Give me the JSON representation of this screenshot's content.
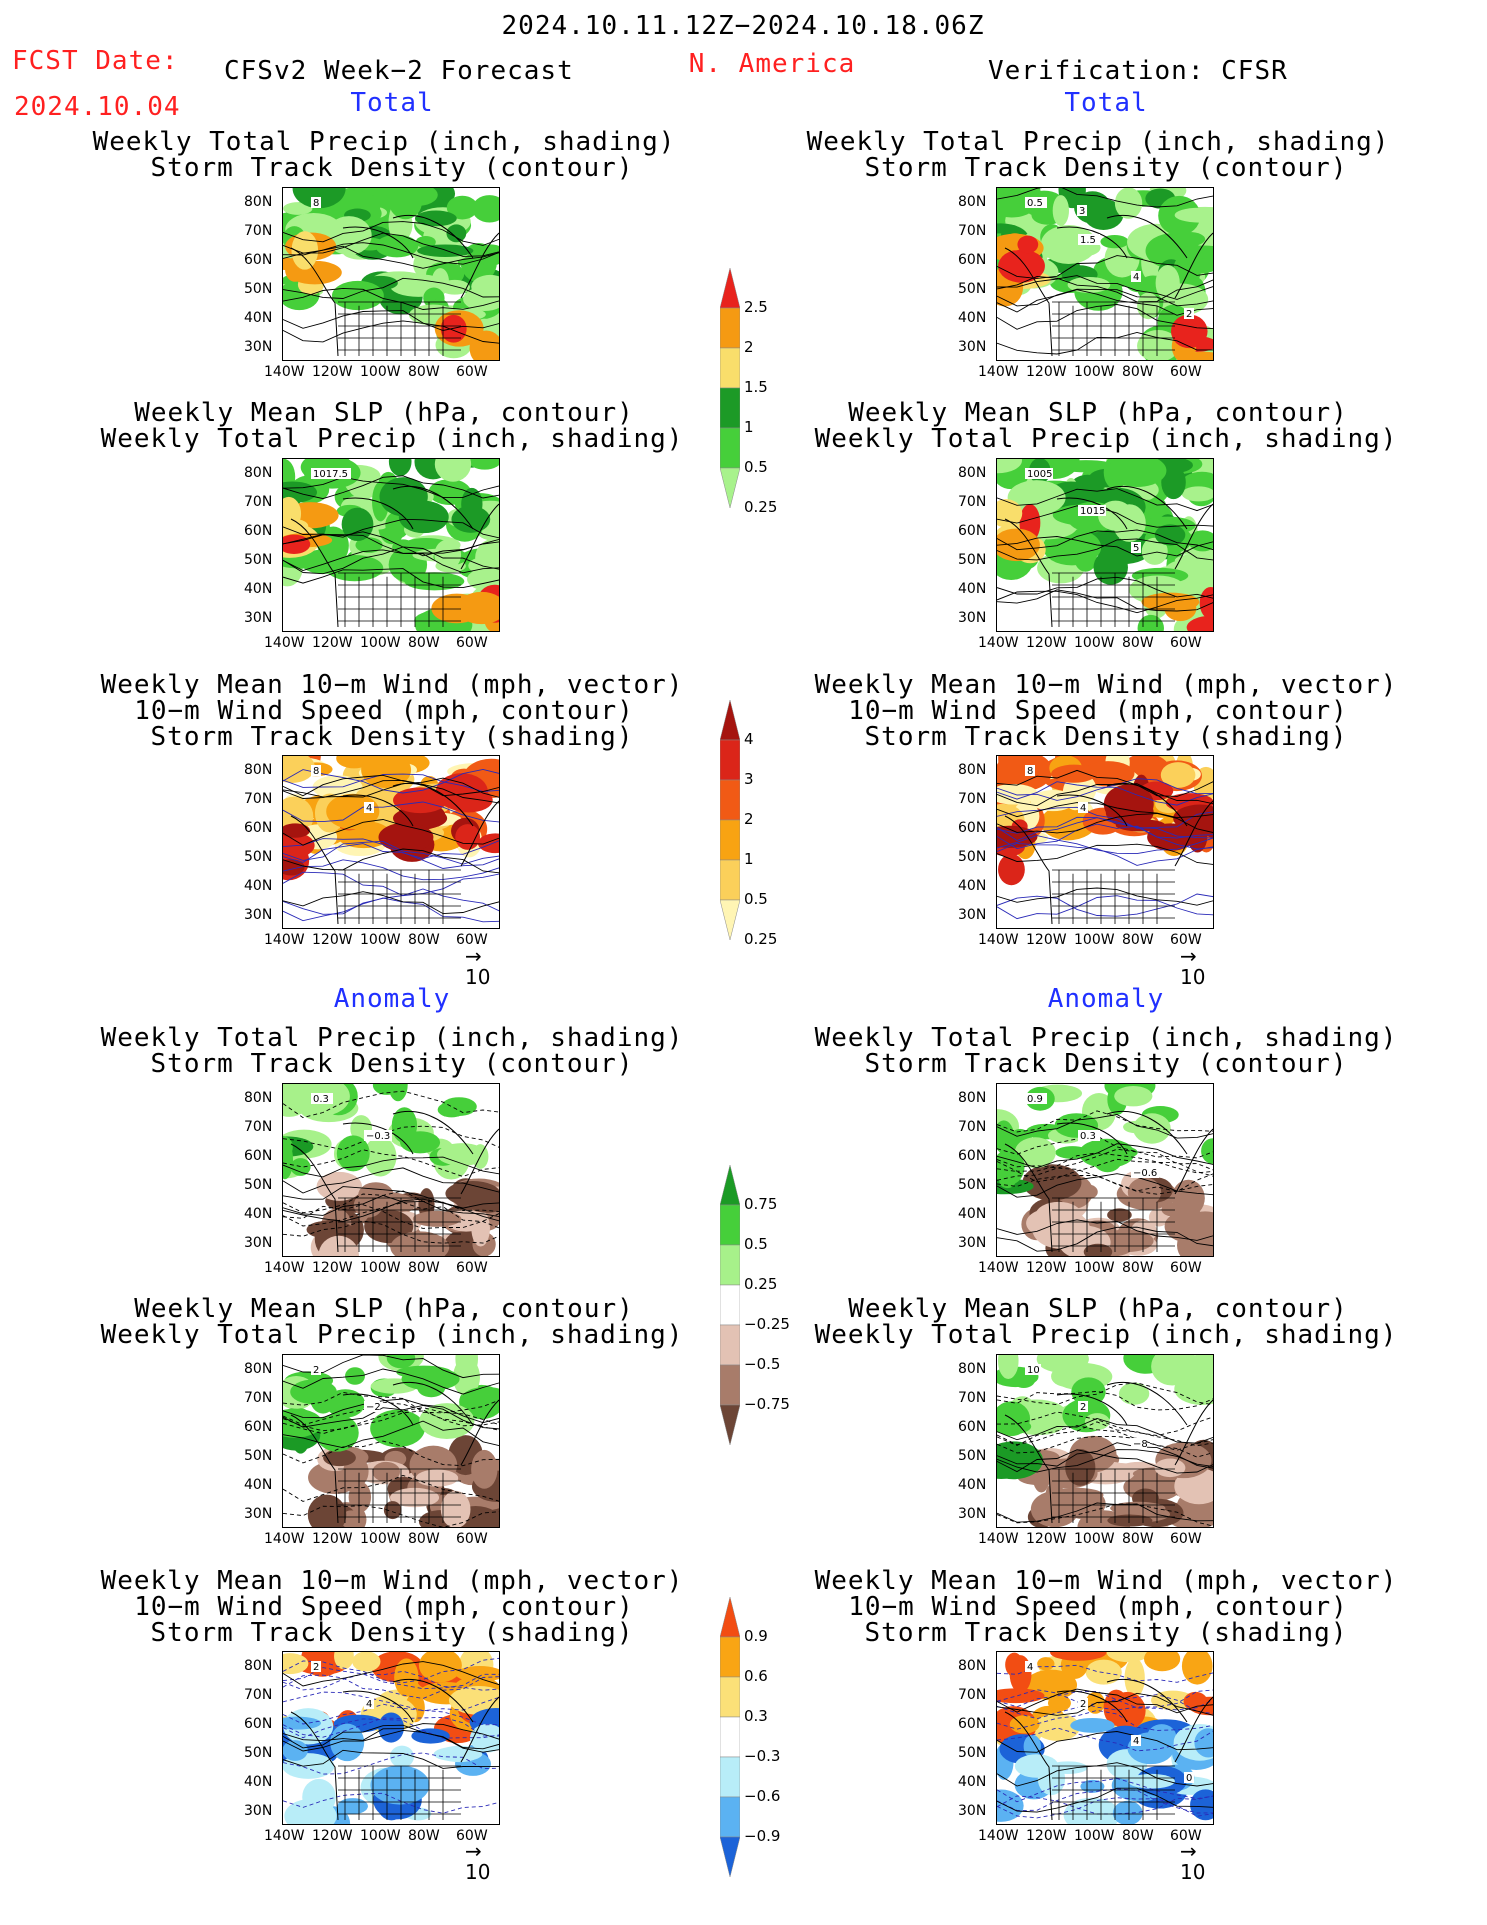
{
  "header": {
    "date_range": "2024.10.11.12Z−2024.10.18.06Z",
    "fcst_label": "FCST Date:",
    "fcst_date": "2024.10.04",
    "model_title": "CFSv2 Week−2 Forecast",
    "region": "N. America",
    "verification": "Verification: CFSR"
  },
  "sections": {
    "total": "Total",
    "anomaly": "Anomaly"
  },
  "panel_titles": {
    "precip_storm": [
      "Weekly Total Precip (inch, shading)",
      "Storm Track Density (contour)"
    ],
    "slp_precip": [
      "Weekly Mean SLP (hPa, contour)",
      "Weekly Total Precip (inch, shading)"
    ],
    "wind": [
      "Weekly Mean 10−m Wind (mph, vector)",
      "10−m Wind Speed (mph, contour)",
      "Storm Track Density (shading)"
    ]
  },
  "axes": {
    "lat_labels": [
      "80N",
      "70N",
      "60N",
      "50N",
      "40N",
      "30N"
    ],
    "lon_labels": [
      "140W",
      "120W",
      "100W",
      "80W",
      "60W"
    ]
  },
  "vector_ref": "10",
  "contour_labels": {
    "fc_total_precip": [
      "8"
    ],
    "cf_total_precip": [
      "0.5",
      "1.5",
      "4",
      "2",
      "3"
    ],
    "fc_total_slp": [
      "1017.5"
    ],
    "cf_total_slp": [
      "1005",
      "1015",
      "5"
    ],
    "fc_total_wind": [
      "8",
      "4"
    ],
    "cf_total_wind": [
      "8",
      "4"
    ],
    "fc_anom_precip": [
      "0.3",
      "−0.3"
    ],
    "cf_anom_precip": [
      "0.9",
      "0.3",
      "−0.6"
    ],
    "fc_anom_slp": [
      "2",
      "−2"
    ],
    "cf_anom_slp": [
      "10",
      "2",
      "−8"
    ],
    "fc_anom_wind": [
      "2",
      "4"
    ],
    "cf_anom_wind": [
      "4",
      "2",
      "4",
      "0"
    ]
  },
  "colorbars": {
    "precip_total": {
      "labels": [
        "2.5",
        "2",
        "1.5",
        "1",
        "0.5",
        "0.25"
      ],
      "colors": [
        "#e8231d",
        "#f59a12",
        "#f9de6b",
        "#1c9a26",
        "#46cf3a",
        "#a8f28c"
      ]
    },
    "storm_total": {
      "labels": [
        "4",
        "3",
        "2",
        "1",
        "0.5",
        "0.25"
      ],
      "colors": [
        "#a5140f",
        "#db2519",
        "#f15a15",
        "#f8a312",
        "#fbd05a",
        "#fff5b4"
      ]
    },
    "precip_anom": {
      "labels": [
        "0.75",
        "0.5",
        "0.25",
        "−0.25",
        "−0.5",
        "−0.75"
      ],
      "colors": [
        "#1b9a25",
        "#46cf3a",
        "#a7f18a",
        "#ffffff",
        "#e3c2b4",
        "#a87c6a",
        "#6c4536"
      ]
    },
    "storm_anom": {
      "labels": [
        "0.9",
        "0.6",
        "0.3",
        "−0.3",
        "−0.6",
        "−0.9"
      ],
      "colors": [
        "#f24d13",
        "#f9a514",
        "#fbe078",
        "#ffffff",
        "#b8edf8",
        "#5bb2f2",
        "#1c63d8"
      ]
    }
  }
}
